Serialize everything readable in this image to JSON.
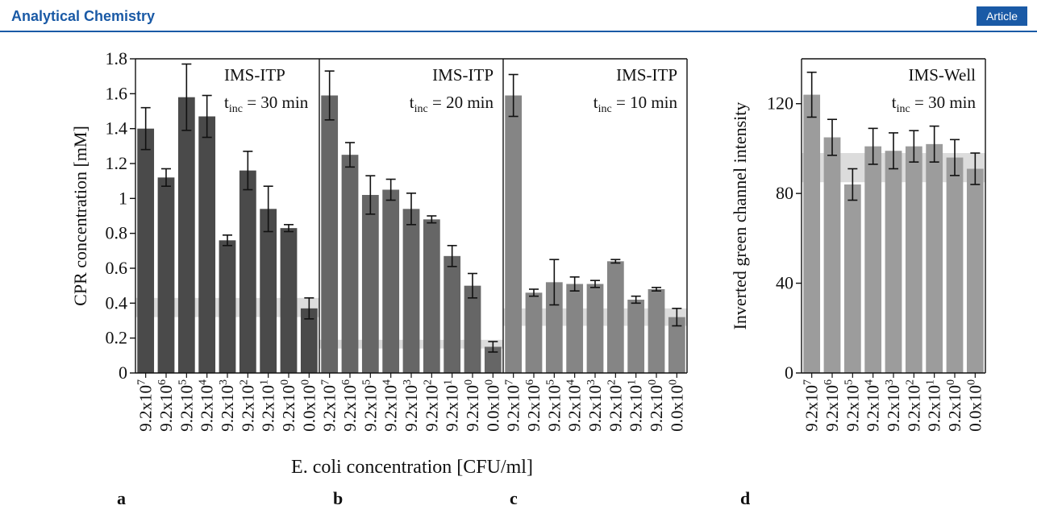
{
  "header": {
    "journal": "Analytical Chemistry",
    "article_badge": "Article"
  },
  "colors": {
    "accent": "#1a5aa6",
    "bar_a": "#4a4a4a",
    "bar_b": "#666666",
    "bar_c": "#858585",
    "bar_d": "#9c9c9c",
    "band": "#dcdcdc"
  },
  "categories": [
    "9.2x10^7",
    "9.2x10^6",
    "9.2x10^5",
    "9.2x10^4",
    "9.2x10^3",
    "9.2x10^2",
    "9.2x10^1",
    "9.2x10^0",
    "0.0x10^0"
  ],
  "x_label": "E. coli concentration [CFU/ml]",
  "chart_data": [
    {
      "type": "bar",
      "panel": "a",
      "title": "IMS-ITP",
      "condition": "t_inc = 30 min",
      "ylabel": "CPR concentration [mM]",
      "ylim": [
        0,
        1.8
      ],
      "yticks": [
        "0",
        "0.2",
        "0.4",
        "0.6",
        "0.8",
        "1",
        "1.2",
        "1.4",
        "1.6",
        "1.8"
      ],
      "values": [
        1.4,
        1.12,
        1.58,
        1.47,
        0.76,
        1.16,
        0.94,
        0.83,
        0.37
      ],
      "errors": [
        0.12,
        0.05,
        0.19,
        0.12,
        0.03,
        0.11,
        0.13,
        0.02,
        0.06
      ],
      "background_band": [
        0.32,
        0.43
      ]
    },
    {
      "type": "bar",
      "panel": "b",
      "title": "IMS-ITP",
      "condition": "t_inc = 20 min",
      "ylim": [
        0,
        1.8
      ],
      "values": [
        1.59,
        1.25,
        1.02,
        1.05,
        0.94,
        0.88,
        0.67,
        0.5,
        0.15
      ],
      "errors": [
        0.14,
        0.07,
        0.11,
        0.06,
        0.09,
        0.02,
        0.06,
        0.07,
        0.03
      ],
      "background_band": [
        0.14,
        0.19
      ]
    },
    {
      "type": "bar",
      "panel": "c",
      "title": "IMS-ITP",
      "condition": "t_inc = 10 min",
      "ylim": [
        0,
        1.8
      ],
      "values": [
        1.59,
        0.46,
        0.52,
        0.51,
        0.51,
        0.64,
        0.42,
        0.48,
        0.32
      ],
      "errors": [
        0.12,
        0.02,
        0.13,
        0.04,
        0.02,
        0.01,
        0.02,
        0.01,
        0.05
      ],
      "background_band": [
        0.27,
        0.37
      ]
    },
    {
      "type": "bar",
      "panel": "d",
      "title": "IMS-Well",
      "condition": "t_inc = 30 min",
      "ylabel": "Inverted green channel intensity",
      "ylim": [
        0,
        140
      ],
      "yticks": [
        "0",
        "40",
        "80",
        "120"
      ],
      "values": [
        124,
        105,
        84,
        101,
        99,
        101,
        102,
        96,
        91
      ],
      "errors": [
        10,
        8,
        7,
        8,
        8,
        7,
        8,
        8,
        7
      ],
      "background_band": [
        85,
        98
      ]
    }
  ],
  "panel_letters": [
    "a",
    "b",
    "c",
    "d"
  ]
}
